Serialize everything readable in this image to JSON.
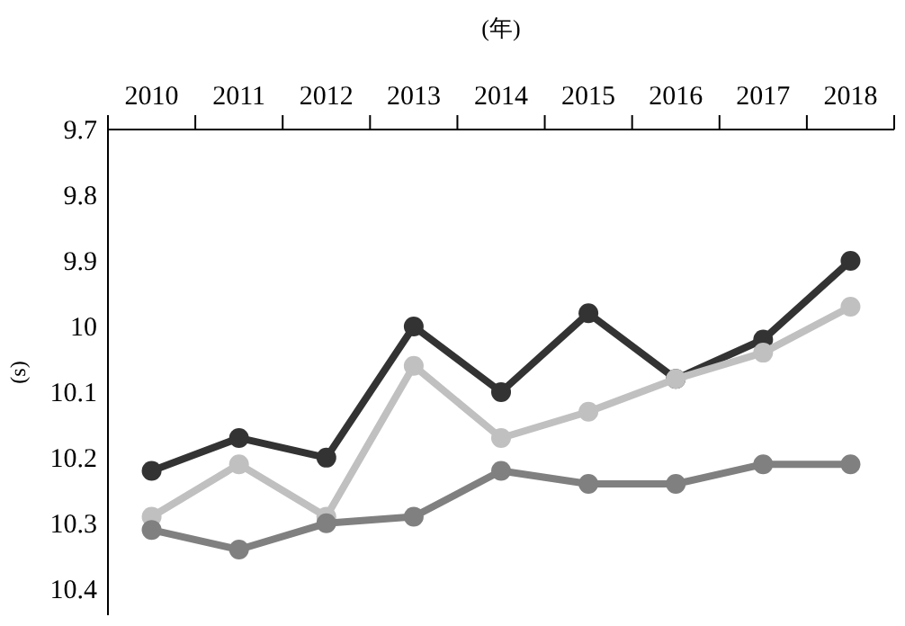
{
  "chart_data": {
    "type": "line",
    "xlabel": "(年)",
    "ylabel": "(s)",
    "categories": [
      "2010",
      "2011",
      "2012",
      "2013",
      "2014",
      "2015",
      "2016",
      "2017",
      "2018"
    ],
    "ylim": [
      10.44,
      9.7
    ],
    "yticks": [
      9.7,
      9.8,
      9.9,
      10,
      10.1,
      10.2,
      10.3,
      10.4
    ],
    "grid": false,
    "marker": "circle",
    "line_style": "solid",
    "series": [
      {
        "color": "#333333",
        "values": [
          10.22,
          10.17,
          10.2,
          10.0,
          10.1,
          9.98,
          10.08,
          10.02,
          9.9
        ]
      },
      {
        "color": "#c0c0c0",
        "values": [
          10.29,
          10.21,
          10.29,
          10.06,
          10.17,
          10.13,
          10.08,
          10.04,
          9.97
        ]
      },
      {
        "color": "#808080",
        "values": [
          10.31,
          10.34,
          10.3,
          10.29,
          10.22,
          10.24,
          10.24,
          10.21,
          10.21
        ]
      }
    ]
  }
}
